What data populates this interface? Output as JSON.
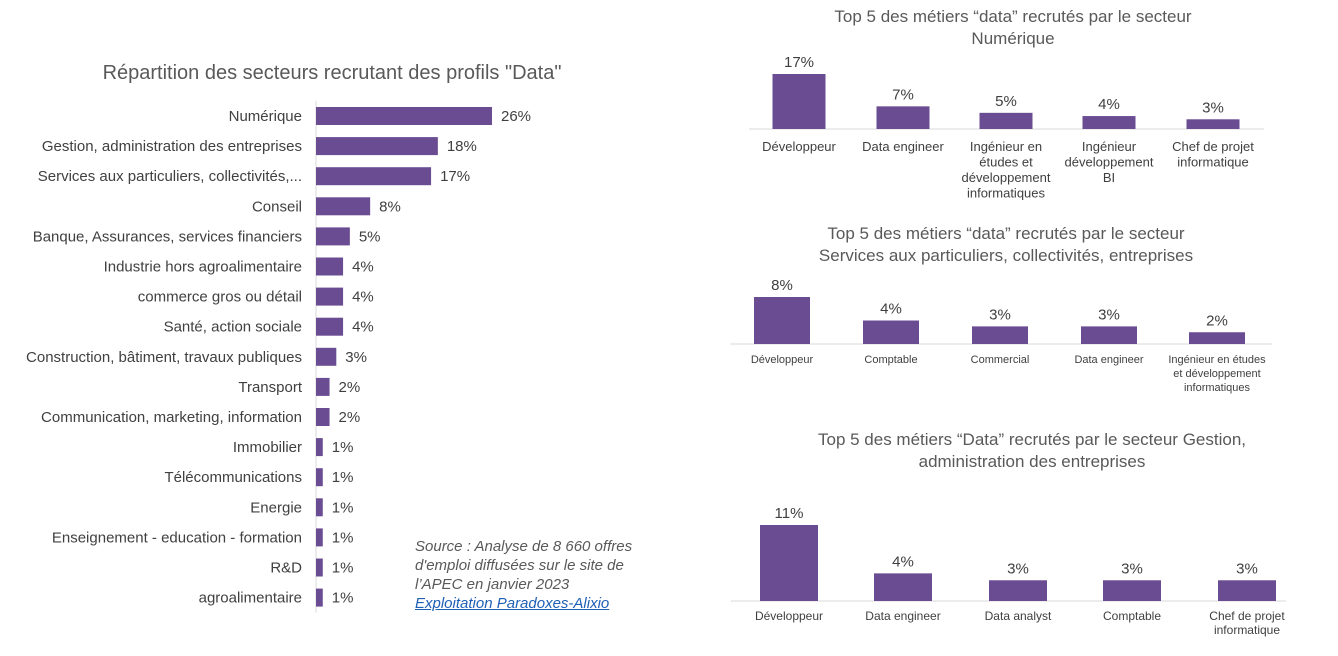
{
  "colors": {
    "bar": "#6a4c93",
    "text": "#404040",
    "axis": "#d9d9d9",
    "link": "#1f5fb4"
  },
  "chart_data": [
    {
      "type": "bar",
      "orientation": "horizontal",
      "title": "Répartition des secteurs recrutant des profils \"Data\"",
      "categories": [
        "Numérique",
        "Gestion, administration des entreprises",
        "Services aux particuliers, collectivités,...",
        "Conseil",
        "Banque, Assurances, services financiers",
        "Industrie hors agroalimentaire",
        "commerce gros ou détail",
        "Santé, action sociale",
        "Construction, bâtiment, travaux publiques",
        "Transport",
        "Communication, marketing, information",
        "Immobilier",
        "Télécommunications",
        "Energie",
        "Enseignement - education - formation",
        "R&D",
        "agroalimentaire"
      ],
      "values": [
        26,
        18,
        17,
        8,
        5,
        4,
        4,
        4,
        3,
        2,
        2,
        1,
        1,
        1,
        1,
        1,
        1
      ],
      "labels": [
        "26%",
        "18%",
        "17%",
        "8%",
        "5%",
        "4%",
        "4%",
        "4%",
        "3%",
        "2%",
        "2%",
        "1%",
        "1%",
        "1%",
        "1%",
        "1%",
        "1%"
      ],
      "unit": "%"
    },
    {
      "type": "bar",
      "title": [
        "Top 5 des métiers “data” recrutés par le secteur",
        "Numérique"
      ],
      "categories": [
        [
          "Développeur"
        ],
        [
          "Data engineer"
        ],
        [
          "Ingénieur en",
          "études et",
          "développement",
          "informatiques"
        ],
        [
          "Ingénieur",
          "développement",
          "BI"
        ],
        [
          "Chef de projet",
          "informatique"
        ]
      ],
      "values": [
        17,
        7,
        5,
        4,
        3
      ],
      "labels": [
        "17%",
        "7%",
        "5%",
        "4%",
        "3%"
      ],
      "unit": "%"
    },
    {
      "type": "bar",
      "title": [
        "Top 5 des métiers “data” recrutés par le secteur",
        "Services aux particuliers, collectivités, entreprises"
      ],
      "categories": [
        [
          "Développeur"
        ],
        [
          "Comptable"
        ],
        [
          "Commercial"
        ],
        [
          "Data engineer"
        ],
        [
          "Ingénieur en études",
          "et développement",
          "informatiques"
        ]
      ],
      "values": [
        8,
        4,
        3,
        3,
        2
      ],
      "labels": [
        "8%",
        "4%",
        "3%",
        "3%",
        "2%"
      ],
      "unit": "%"
    },
    {
      "type": "bar",
      "title": [
        "Top 5 des métiers “Data” recrutés par le secteur Gestion,",
        "administration des entreprises"
      ],
      "categories": [
        [
          "Développeur"
        ],
        [
          "Data engineer"
        ],
        [
          "Data analyst"
        ],
        [
          "Comptable"
        ],
        [
          "Chef de projet",
          "informatique"
        ]
      ],
      "values": [
        11,
        4,
        3,
        3,
        3
      ],
      "labels": [
        "11%",
        "4%",
        "3%",
        "3%",
        "3%"
      ],
      "unit": "%"
    }
  ],
  "source": {
    "lines": [
      "Source : Analyse de 8 660 offres",
      "d'emploi diffusées sur le site de",
      "l’APEC en  janvier 2023"
    ],
    "link": "Exploitation Paradoxes-Alixio"
  }
}
